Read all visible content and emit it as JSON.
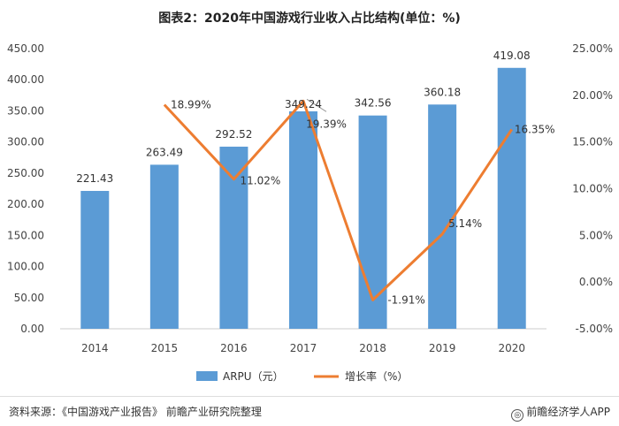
{
  "chart_data": {
    "type": "bar+line",
    "title": "图表2：2020年中国游戏行业收入占比结构(单位：%)",
    "categories": [
      "2014",
      "2015",
      "2016",
      "2017",
      "2018",
      "2019",
      "2020"
    ],
    "series": [
      {
        "name": "ARPU（元）",
        "type": "bar",
        "axis": "left",
        "color": "#5b9bd5",
        "values": [
          221.43,
          263.49,
          292.52,
          349.24,
          342.56,
          360.18,
          419.08
        ],
        "labels": [
          "221.43",
          "263.49",
          "292.52",
          "349.24",
          "342.56",
          "360.18",
          "419.08"
        ]
      },
      {
        "name": "增长率（%）",
        "type": "line",
        "axis": "right",
        "color": "#ed7d31",
        "values": [
          null,
          18.99,
          11.02,
          19.39,
          -1.91,
          5.14,
          16.35
        ],
        "labels": [
          "",
          "18.99%",
          "11.02%",
          "19.39%",
          "-1.91%",
          "5.14%",
          "16.35%"
        ]
      }
    ],
    "y_left": {
      "lim": [
        0,
        450
      ],
      "ticks": [
        0,
        50,
        100,
        150,
        200,
        250,
        300,
        350,
        400,
        450
      ],
      "tick_labels": [
        "0.00",
        "50.00",
        "100.00",
        "150.00",
        "200.00",
        "250.00",
        "300.00",
        "350.00",
        "400.00",
        "450.00"
      ]
    },
    "y_right": {
      "lim": [
        -5,
        25
      ],
      "ticks": [
        -5,
        0,
        5,
        10,
        15,
        20,
        25
      ],
      "tick_labels": [
        "-5.00%",
        "0.00%",
        "5.00%",
        "10.00%",
        "15.00%",
        "20.00%",
        "25.00%"
      ]
    },
    "legend_position": "bottom",
    "grid": false
  },
  "footer": {
    "source": "资料来源：《中国游戏产业报告》 前瞻产业研究院整理",
    "brand": "前瞻经济学人APP",
    "brand_icon": "globe-icon"
  }
}
